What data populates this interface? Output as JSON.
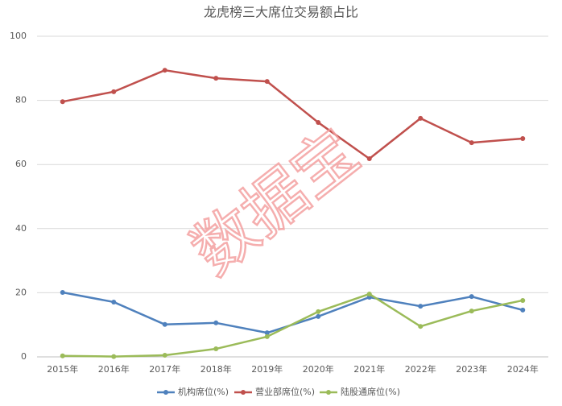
{
  "chart_data": {
    "type": "line",
    "title": "龙虎榜三大席位交易额占比",
    "categories": [
      "2015年",
      "2016年",
      "2017年",
      "2018年",
      "2019年",
      "2020年",
      "2021年",
      "2022年",
      "2023年",
      "2024年"
    ],
    "series": [
      {
        "name": "机构席位(%)",
        "color": "#4f81bd",
        "values": [
          20.1,
          17.1,
          10.1,
          10.6,
          7.5,
          12.6,
          18.6,
          15.8,
          18.8,
          14.6
        ]
      },
      {
        "name": "营业部席位(%)",
        "color": "#c0504d",
        "values": [
          79.6,
          82.7,
          89.4,
          86.9,
          85.9,
          73.1,
          61.8,
          74.4,
          66.8,
          68.1
        ]
      },
      {
        "name": "陆股通席位(%)",
        "color": "#9bbb59",
        "values": [
          0.3,
          0.1,
          0.5,
          2.5,
          6.3,
          14.1,
          19.6,
          9.5,
          14.3,
          17.6
        ]
      }
    ],
    "ylim": [
      0,
      100
    ],
    "yticks": [
      0,
      20,
      40,
      60,
      80,
      100
    ],
    "grid": true,
    "legend": "bottom",
    "watermark": "数据宝"
  }
}
